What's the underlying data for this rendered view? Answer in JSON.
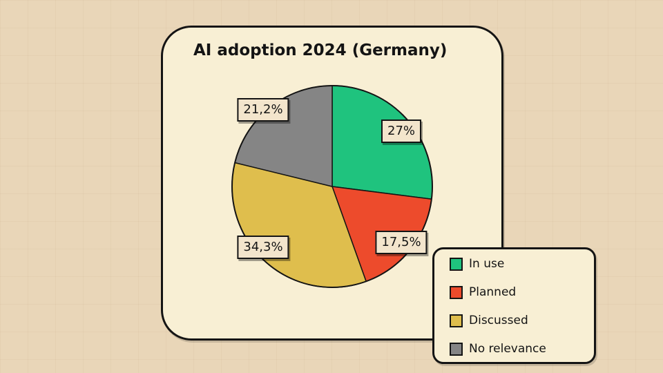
{
  "chart_data": {
    "type": "pie",
    "title": "AI adoption 2024 (Germany)",
    "legend_position": "bottom-right",
    "slices": [
      {
        "label": "In use",
        "value": 27,
        "display": "27%",
        "color": "#1fc37e"
      },
      {
        "label": "Planned",
        "value": 17.5,
        "display": "17,5%",
        "color": "#ed4b2c"
      },
      {
        "label": "Discussed",
        "value": 34.3,
        "display": "34,3%",
        "color": "#dfbe4d"
      },
      {
        "label": "No relevance",
        "value": 21.2,
        "display": "21,2%",
        "color": "#858585"
      }
    ]
  }
}
